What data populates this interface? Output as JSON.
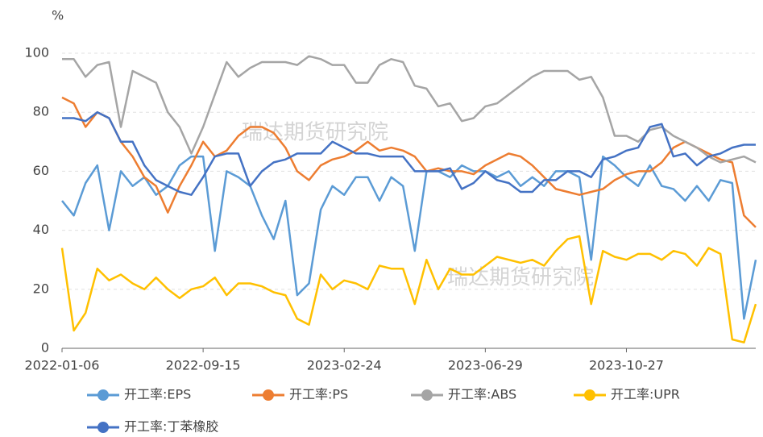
{
  "chart_data": {
    "type": "line",
    "y_unit": "%",
    "watermark": "瑞达期货研究院",
    "categories": [
      "2022-01-06",
      null,
      null,
      null,
      null,
      null,
      null,
      null,
      null,
      null,
      null,
      null,
      "2022-09-15",
      null,
      null,
      null,
      null,
      null,
      null,
      null,
      null,
      null,
      null,
      null,
      "2023-02-24",
      null,
      null,
      null,
      null,
      null,
      null,
      null,
      null,
      null,
      null,
      null,
      "2023-06-29",
      null,
      null,
      null,
      null,
      null,
      null,
      null,
      null,
      null,
      null,
      null,
      "2023-10-27",
      null,
      null,
      null,
      null,
      null,
      null,
      null,
      null,
      null,
      null,
      null
    ],
    "ylim": [
      0,
      100
    ],
    "yticks": [
      0,
      20,
      40,
      60,
      80,
      100
    ],
    "grid": true,
    "series": [
      {
        "name": "开工率:EPS",
        "color": "#5b9bd5",
        "values": [
          50,
          45,
          56,
          62,
          40,
          60,
          55,
          58,
          52,
          55,
          62,
          65,
          65,
          33,
          60,
          58,
          55,
          45,
          37,
          50,
          18,
          22,
          47,
          55,
          52,
          58,
          58,
          50,
          58,
          55,
          33,
          60,
          60,
          58,
          62,
          60,
          60,
          58,
          60,
          55,
          58,
          55,
          60,
          60,
          58,
          30,
          65,
          62,
          58,
          55,
          62,
          55,
          54,
          50,
          55,
          50,
          57,
          56,
          10,
          30
        ]
      },
      {
        "name": "开工率:PS",
        "color": "#ed7d31",
        "values": [
          85,
          83,
          75,
          80,
          78,
          70,
          65,
          58,
          55,
          46,
          55,
          62,
          70,
          65,
          67,
          72,
          75,
          75,
          73,
          68,
          60,
          57,
          62,
          64,
          65,
          67,
          70,
          67,
          68,
          67,
          65,
          60,
          61,
          60,
          60,
          59,
          62,
          64,
          66,
          65,
          62,
          58,
          54,
          53,
          52,
          53,
          54,
          57,
          59,
          60,
          60,
          63,
          68,
          70,
          68,
          66,
          64,
          63,
          45,
          41
        ]
      },
      {
        "name": "开工率:ABS",
        "color": "#a5a5a5",
        "values": [
          98,
          98,
          92,
          96,
          97,
          75,
          94,
          92,
          90,
          80,
          75,
          66,
          75,
          86,
          97,
          92,
          95,
          97,
          97,
          97,
          96,
          99,
          98,
          96,
          96,
          90,
          90,
          96,
          98,
          97,
          89,
          88,
          82,
          83,
          77,
          78,
          82,
          83,
          86,
          89,
          92,
          94,
          94,
          94,
          91,
          92,
          85,
          72,
          72,
          70,
          74,
          75,
          72,
          70,
          68,
          65,
          63,
          64,
          65,
          63
        ]
      },
      {
        "name": "开工率:UPR",
        "color": "#ffc000",
        "values": [
          34,
          6,
          12,
          27,
          23,
          25,
          22,
          20,
          24,
          20,
          17,
          20,
          21,
          24,
          18,
          22,
          22,
          21,
          19,
          18,
          10,
          8,
          25,
          20,
          23,
          22,
          20,
          28,
          27,
          27,
          15,
          30,
          20,
          27,
          25,
          25,
          28,
          31,
          30,
          29,
          30,
          28,
          33,
          37,
          38,
          15,
          33,
          31,
          30,
          32,
          32,
          30,
          33,
          32,
          28,
          34,
          32,
          3,
          2,
          15
        ]
      },
      {
        "name": "开工率:丁苯橡胶",
        "color": "#4472c4",
        "values": [
          78,
          78,
          77,
          80,
          78,
          70,
          70,
          62,
          57,
          55,
          53,
          52,
          58,
          65,
          66,
          66,
          55,
          60,
          63,
          64,
          66,
          66,
          66,
          70,
          68,
          66,
          66,
          65,
          65,
          65,
          60,
          60,
          60,
          61,
          54,
          56,
          60,
          57,
          56,
          53,
          53,
          57,
          57,
          60,
          60,
          58,
          64,
          65,
          67,
          68,
          75,
          76,
          65,
          66,
          62,
          65,
          66,
          68,
          69,
          69
        ]
      }
    ]
  }
}
